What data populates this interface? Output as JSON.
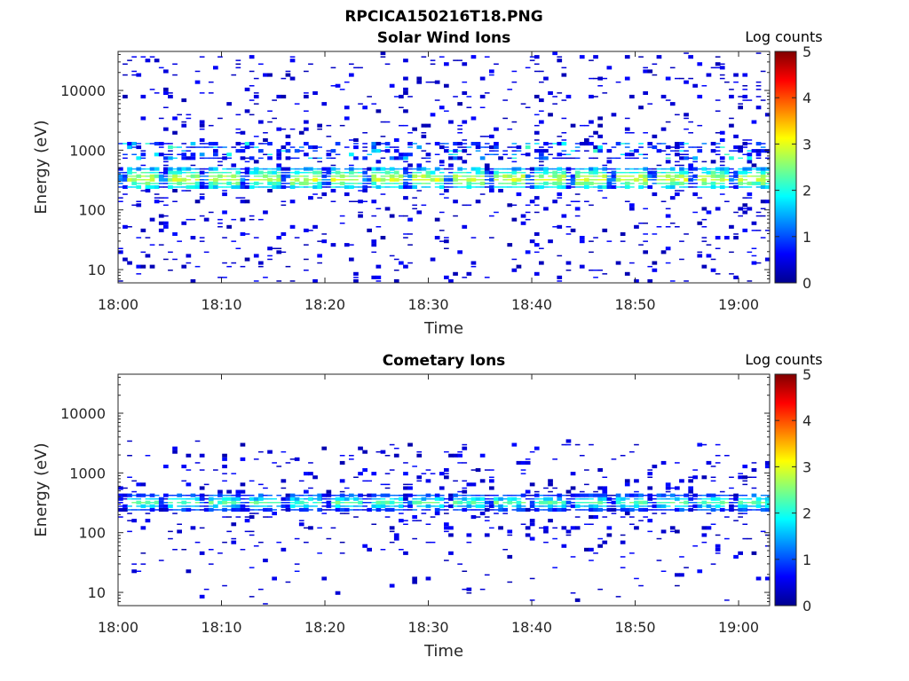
{
  "figure": {
    "title": "RPCICA150216T18.PNG"
  },
  "chart_data": [
    {
      "type": "heatmap",
      "title": "Solar Wind Ions",
      "xlabel": "Time",
      "ylabel": "Energy (eV)",
      "xlim_minutes": [
        0,
        63
      ],
      "x_ticks": [
        {
          "value": 0,
          "label": "18:00"
        },
        {
          "value": 10,
          "label": "18:10"
        },
        {
          "value": 20,
          "label": "18:20"
        },
        {
          "value": 30,
          "label": "18:30"
        },
        {
          "value": 40,
          "label": "18:40"
        },
        {
          "value": 50,
          "label": "18:50"
        },
        {
          "value": 60,
          "label": "19:00"
        }
      ],
      "y_scale": "log",
      "ylim": [
        6,
        45000
      ],
      "y_ticks": [
        {
          "value": 10,
          "label": "10"
        },
        {
          "value": 100,
          "label": "100"
        },
        {
          "value": 1000,
          "label": "1000"
        },
        {
          "value": 10000,
          "label": "10000"
        }
      ],
      "colorbar": {
        "title": "Log counts",
        "range": [
          0,
          5
        ],
        "ticks": [
          "0",
          "1",
          "2",
          "3",
          "4",
          "5"
        ],
        "colormap": "jet"
      },
      "features": {
        "main_band_eV": [
          220,
          500
        ],
        "peak_log_counts": 3.0,
        "upper_band_eV": [
          700,
          1300
        ],
        "sparse_background_eV": [
          6,
          45000
        ]
      }
    },
    {
      "type": "heatmap",
      "title": "Cometary Ions",
      "xlabel": "Time",
      "ylabel": "Energy (eV)",
      "xlim_minutes": [
        0,
        63
      ],
      "x_ticks": [
        {
          "value": 0,
          "label": "18:00"
        },
        {
          "value": 10,
          "label": "18:10"
        },
        {
          "value": 20,
          "label": "18:20"
        },
        {
          "value": 30,
          "label": "18:30"
        },
        {
          "value": 40,
          "label": "18:40"
        },
        {
          "value": 50,
          "label": "18:50"
        },
        {
          "value": 60,
          "label": "19:00"
        }
      ],
      "y_scale": "log",
      "ylim": [
        6,
        45000
      ],
      "y_ticks": [
        {
          "value": 10,
          "label": "10"
        },
        {
          "value": 100,
          "label": "100"
        },
        {
          "value": 1000,
          "label": "1000"
        },
        {
          "value": 10000,
          "label": "10000"
        }
      ],
      "colorbar": {
        "title": "Log counts",
        "range": [
          0,
          5
        ],
        "ticks": [
          "0",
          "1",
          "2",
          "3",
          "4",
          "5"
        ],
        "colormap": "jet"
      },
      "features": {
        "main_band_eV": [
          230,
          450
        ],
        "peak_log_counts": 2.3,
        "sparse_background_eV": [
          6,
          3500
        ]
      }
    }
  ]
}
